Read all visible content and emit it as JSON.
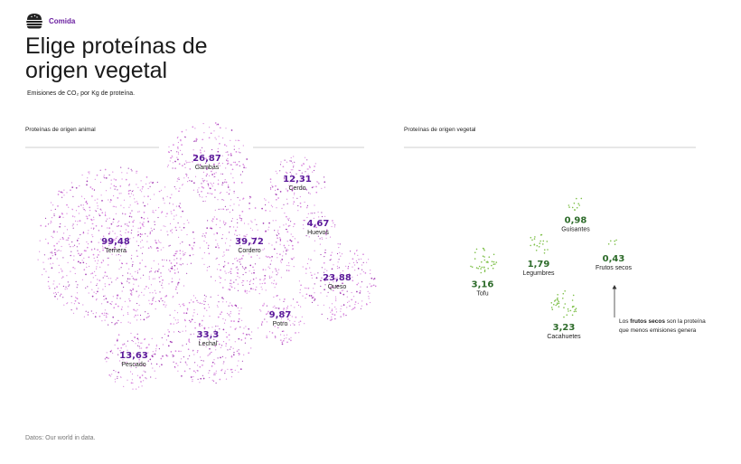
{
  "header": {
    "category": "Comida",
    "title": "Elige proteínas de origen vegetal",
    "subtitle": "Emisiones de CO₂ por Kg de proteína."
  },
  "sections": {
    "animal_label": "Proteínas de origen animal",
    "vegetal_label": "Proteínas de origen vegetal"
  },
  "note": {
    "pre": "Los ",
    "strong": "frutos secos",
    "post": " son la proteína que menos emisiones genera"
  },
  "source": "Datos: Our world in data.",
  "colors": {
    "animal": "#d985de",
    "animal_dark": "#a43fb5",
    "animal_value": "#5b1a9a",
    "vegetal": "#7fc04a",
    "vegetal_value": "#2d6b2a"
  },
  "chart_data": {
    "type": "bubble",
    "series": [
      {
        "name": "Proteínas de origen animal",
        "items": [
          {
            "label": "Ternera",
            "value": 99.48,
            "display": "99,48"
          },
          {
            "label": "Cordero",
            "value": 39.72,
            "display": "39,72"
          },
          {
            "label": "Lechal",
            "value": 33.3,
            "display": "33,3"
          },
          {
            "label": "Gambas",
            "value": 26.87,
            "display": "26,87"
          },
          {
            "label": "Queso",
            "value": 23.88,
            "display": "23,88"
          },
          {
            "label": "Pescado",
            "value": 13.63,
            "display": "13,63"
          },
          {
            "label": "Cerdo",
            "value": 12.31,
            "display": "12,31"
          },
          {
            "label": "Potro",
            "value": 9.87,
            "display": "9,87"
          },
          {
            "label": "Huevos",
            "value": 4.67,
            "display": "4,67"
          }
        ]
      },
      {
        "name": "Proteínas de origen vegetal",
        "items": [
          {
            "label": "Tofu",
            "value": 3.16,
            "display": "3,16"
          },
          {
            "label": "Cacahuetes",
            "value": 3.23,
            "display": "3,23"
          },
          {
            "label": "Legumbres",
            "value": 1.79,
            "display": "1,79"
          },
          {
            "label": "Guisantes",
            "value": 0.98,
            "display": "0,98"
          },
          {
            "label": "Frutos secos",
            "value": 0.43,
            "display": "0,43"
          }
        ]
      }
    ]
  }
}
